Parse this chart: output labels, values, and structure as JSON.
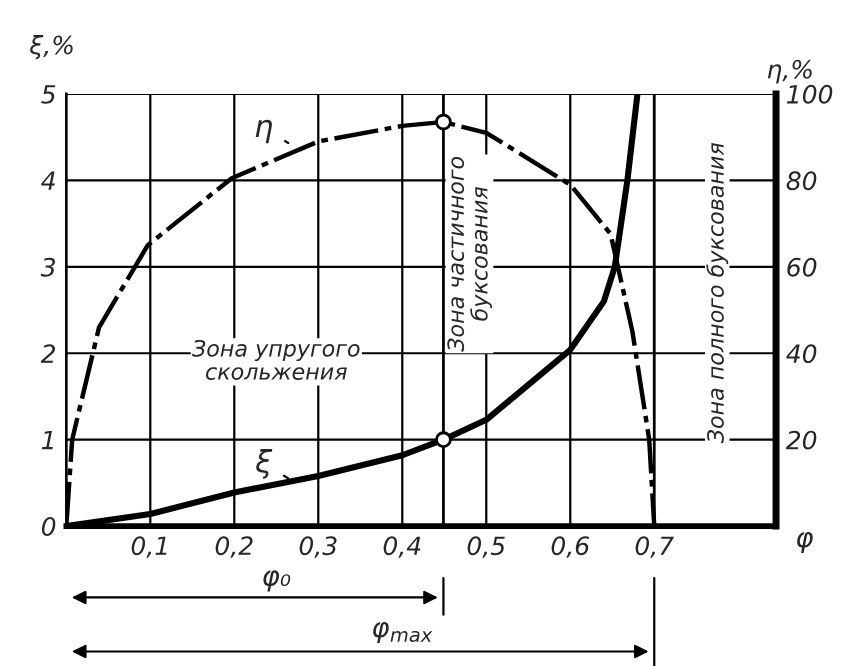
{
  "chart_data": {
    "type": "line",
    "xlabel": "φ",
    "ylabel": "ξ,%",
    "y2label": "η,%",
    "xlim": [
      0,
      0.845
    ],
    "ylim": [
      0,
      5
    ],
    "y2lim": [
      0,
      100
    ],
    "xticks": [
      {
        "value": 0.1,
        "label": "0,1"
      },
      {
        "value": 0.2,
        "label": "0,2"
      },
      {
        "value": 0.3,
        "label": "0,3"
      },
      {
        "value": 0.4,
        "label": "0,4"
      },
      {
        "value": 0.5,
        "label": "0,5"
      },
      {
        "value": 0.6,
        "label": "0,6"
      },
      {
        "value": 0.7,
        "label": "0,7"
      }
    ],
    "yticks": [
      0,
      1,
      2,
      3,
      4,
      5
    ],
    "y2ticks": [
      20,
      40,
      60,
      80,
      100
    ],
    "grid": true,
    "series": [
      {
        "type": "line",
        "axis": "y2",
        "color": "#000000",
        "line_style": "dashed",
        "x": [
          0,
          0.007,
          0.039,
          0.097,
          0.197,
          0.3,
          0.4,
          0.449,
          0.5,
          0.6,
          0.648,
          0.674,
          0.694,
          0.7
        ],
        "values": [
          0,
          20,
          46,
          65,
          80.5,
          89,
          92.6,
          93.5,
          91,
          79,
          67.6,
          45,
          20,
          0
        ]
      },
      {
        "type": "line",
        "axis": "y",
        "color": "#000000",
        "line_style": "solid",
        "x": [
          0,
          0.1,
          0.2,
          0.3,
          0.4,
          0.449,
          0.5,
          0.6,
          0.64,
          0.653,
          0.668,
          0.68
        ],
        "values": [
          0,
          0.14,
          0.39,
          0.58,
          0.82,
          1.0,
          1.23,
          2.04,
          2.6,
          3.0,
          4.0,
          5.0
        ]
      },
      {
        "type": "scatter",
        "axis": "y2",
        "color": "#000000",
        "marker": "circle",
        "x": [
          0.449
        ],
        "values": [
          93.5
        ]
      },
      {
        "type": "scatter",
        "axis": "y",
        "color": "#000000",
        "marker": "circle",
        "x": [
          0.449
        ],
        "values": [
          1.0
        ]
      }
    ],
    "ref_lines": [
      {
        "axis": "x",
        "value": 0.449
      },
      {
        "axis": "x",
        "value": 0.7
      }
    ],
    "annotations": [
      "φ₀",
      "φ$_{max}$",
      {
        "text": "η",
        "x": 0.27,
        "y": 4.4
      },
      {
        "text": "ξ",
        "x": 0.27,
        "y": 0.52
      },
      "Зона упругого\nскольжения",
      "Зона частичного\nбуксования",
      "Зона полного буксования"
    ]
  }
}
